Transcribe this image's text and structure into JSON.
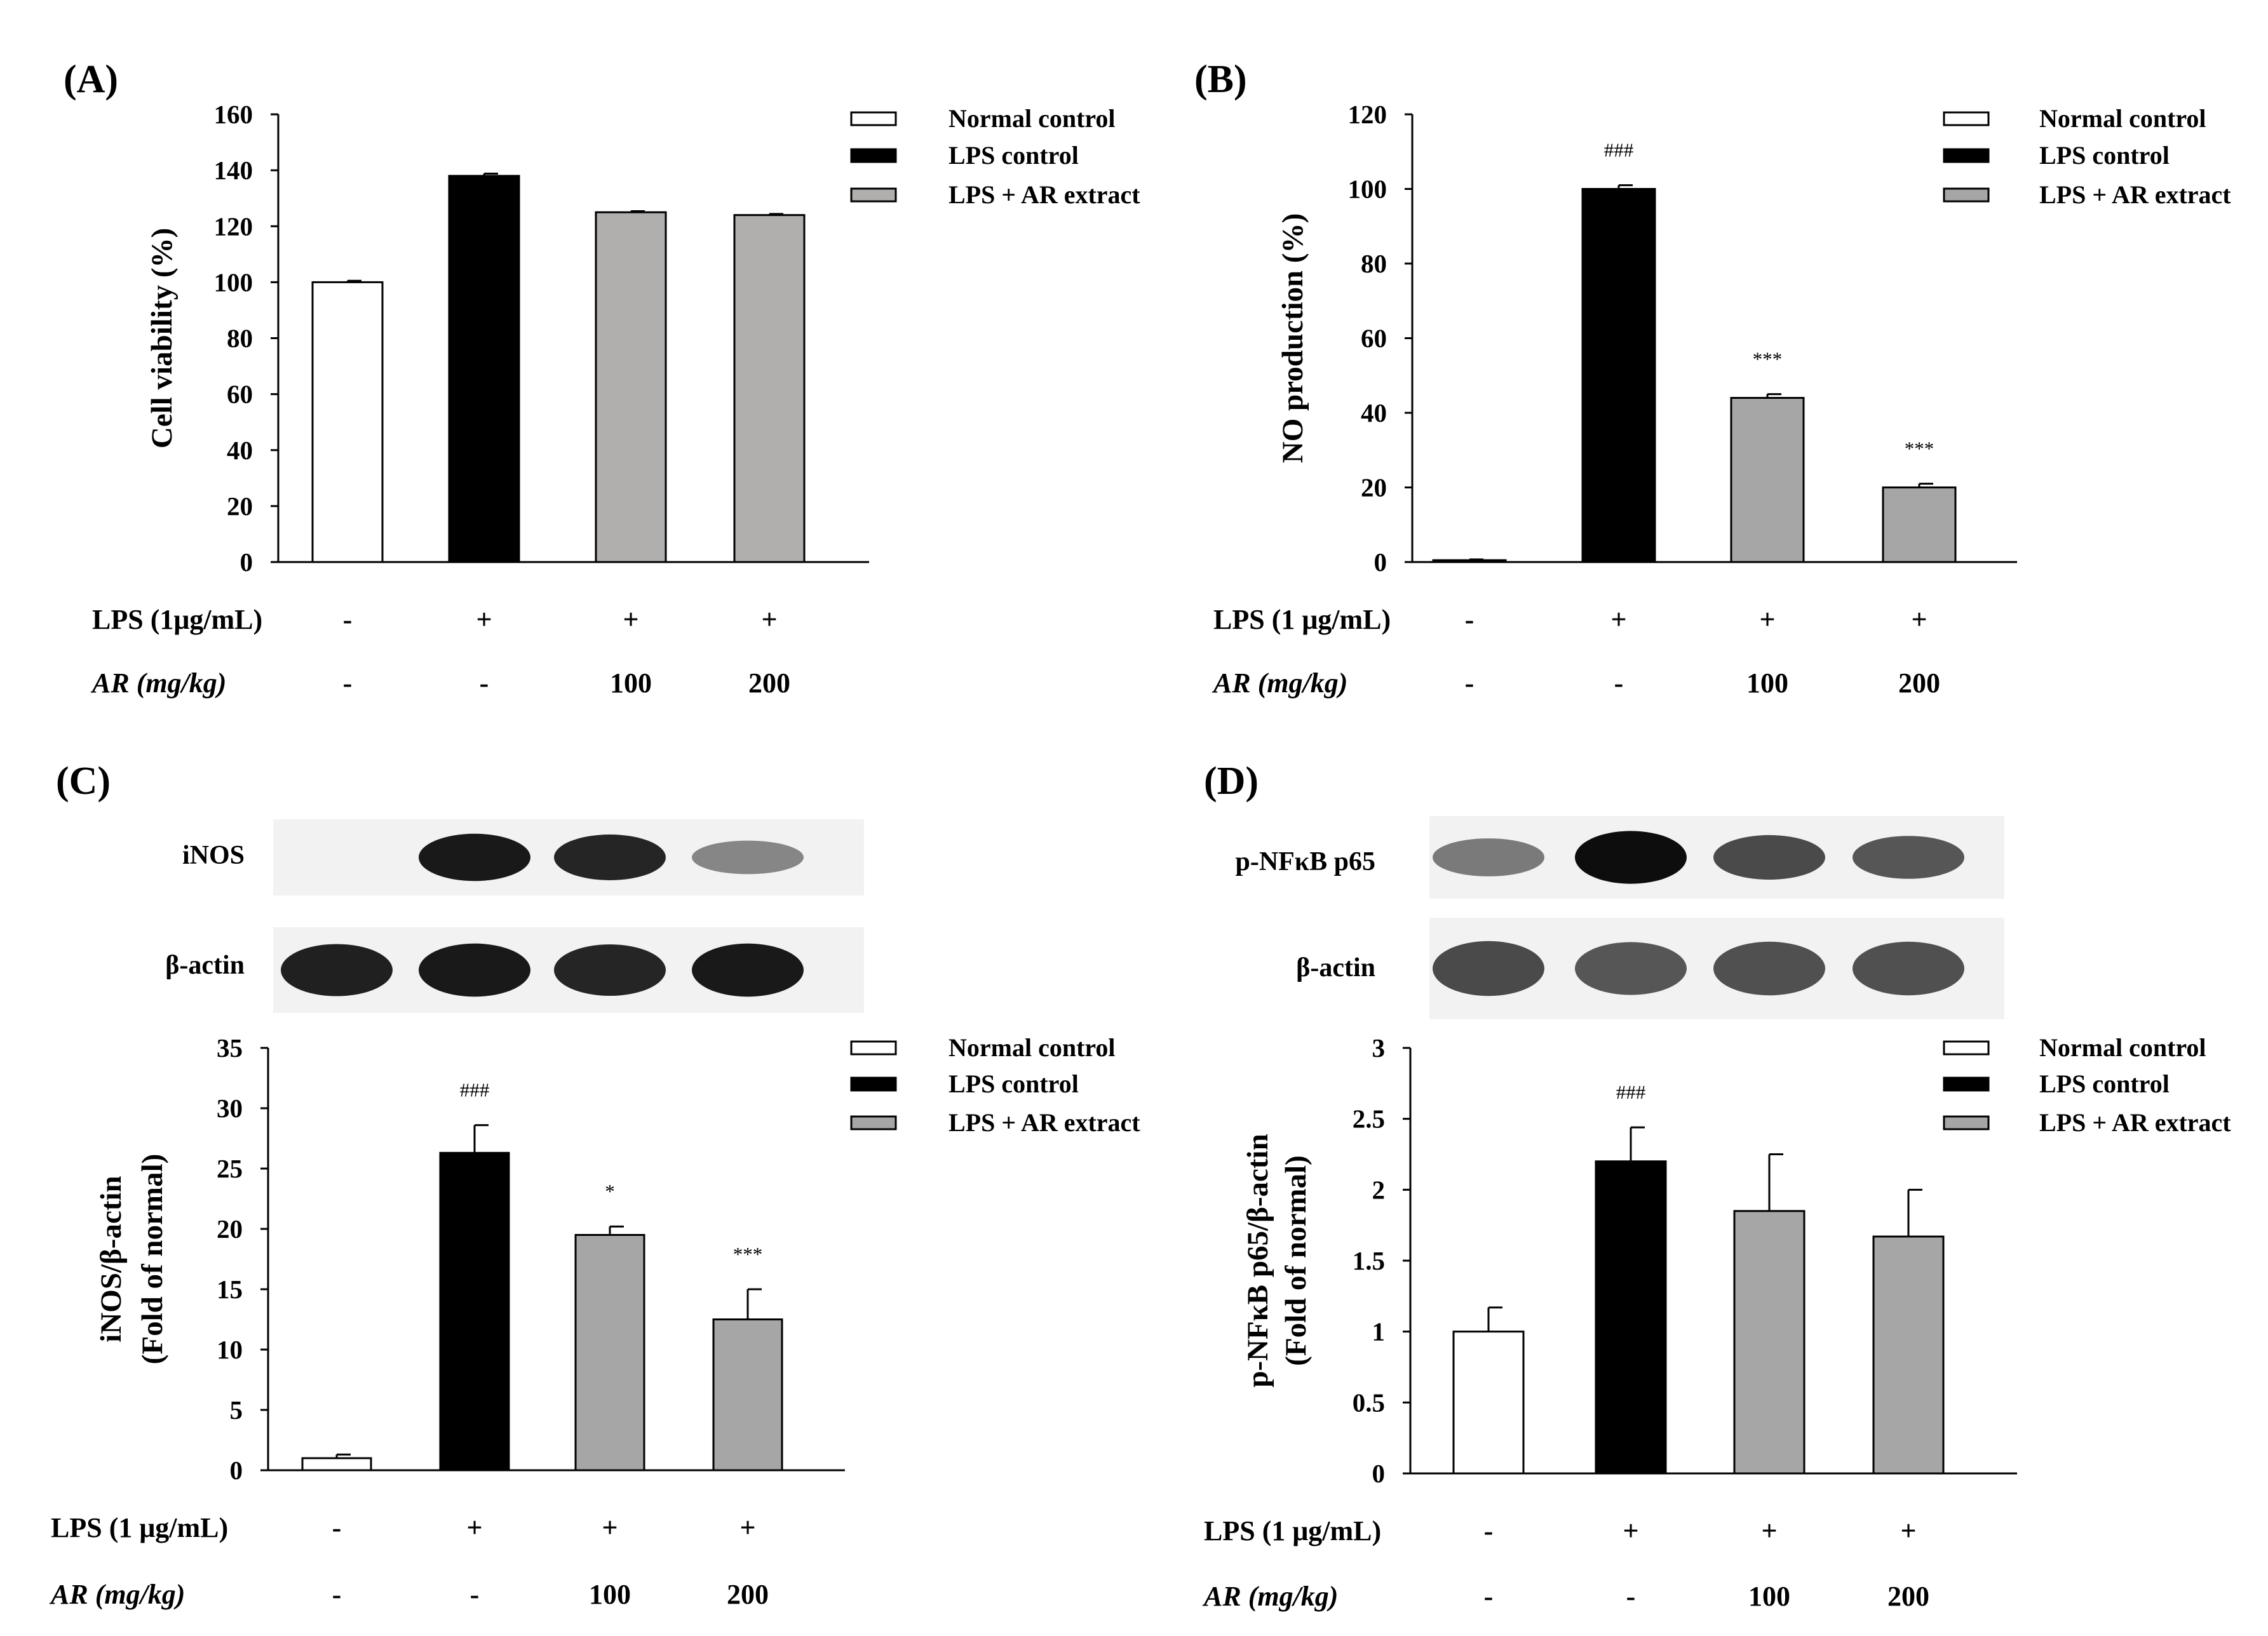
{
  "colors": {
    "normal": "#ffffff",
    "lps": "#000000",
    "ar_a": "#b1aeae",
    "ar": "#a6a6a6",
    "edge": "#000000"
  },
  "legend": [
    "Normal control",
    "LPS control",
    "LPS + AR extract"
  ],
  "chart_data": [
    {
      "panel": "(A)",
      "type": "bar",
      "ylabel": "Cell viability (%)",
      "ylim": [
        0,
        160
      ],
      "yticks": [
        "0",
        "20",
        "40",
        "60",
        "80",
        "100",
        "120",
        "140",
        "160"
      ],
      "categories": [
        "Normal control",
        "LPS control",
        "LPS + AR 100",
        "LPS + AR 200"
      ],
      "values": [
        100,
        138,
        125,
        124
      ],
      "errors": [
        0.5,
        0.8,
        0.4,
        0.4
      ],
      "significance": [
        "",
        "",
        "",
        ""
      ],
      "rows": [
        {
          "label": "LPS (1μg/mL)",
          "italic_prefix": "",
          "values": [
            "-",
            "+",
            "+",
            "+"
          ]
        },
        {
          "label": " (mg/kg)",
          "italic_prefix": "AR",
          "values": [
            "-",
            "-",
            "100",
            "200"
          ]
        }
      ]
    },
    {
      "panel": "(B)",
      "type": "bar",
      "ylabel": "NO production (%)",
      "ylim": [
        0,
        120
      ],
      "yticks": [
        "0",
        "20",
        "40",
        "60",
        "80",
        "100",
        "120"
      ],
      "categories": [
        "Normal control",
        "LPS control",
        "LPS + AR 100",
        "LPS + AR 200"
      ],
      "values": [
        0.5,
        100,
        44,
        20
      ],
      "errors": [
        0.2,
        1.0,
        1.0,
        1.0
      ],
      "significance": [
        "",
        "###",
        "***",
        "***"
      ],
      "rows": [
        {
          "label": "LPS (1 μg/mL)",
          "italic_prefix": "",
          "values": [
            "-",
            "+",
            "+",
            "+"
          ]
        },
        {
          "label": " (mg/kg)",
          "italic_prefix": "AR",
          "values": [
            "-",
            "-",
            "100",
            "200"
          ]
        }
      ]
    },
    {
      "panel": "(C)",
      "type": "bar",
      "ylabel_lines": [
        "iNOS/β-actin",
        "(Fold of normal)"
      ],
      "ylim": [
        0,
        35
      ],
      "yticks": [
        "0",
        "5",
        "10",
        "15",
        "20",
        "25",
        "30",
        "35"
      ],
      "categories": [
        "Normal control",
        "LPS control",
        "LPS + AR 100",
        "LPS + AR 200"
      ],
      "values": [
        1,
        26.3,
        19.5,
        12.5
      ],
      "errors": [
        0.3,
        2.3,
        0.7,
        2.5
      ],
      "significance": [
        "",
        "###",
        "*",
        "***"
      ],
      "blot_labels": [
        "iNOS",
        "β-actin"
      ],
      "rows": [
        {
          "label": "LPS (1 μg/mL)",
          "italic_prefix": "",
          "values": [
            "-",
            "+",
            "+",
            "+"
          ]
        },
        {
          "label": " (mg/kg)",
          "italic_prefix": "AR",
          "values": [
            "-",
            "-",
            "100",
            "200"
          ]
        }
      ]
    },
    {
      "panel": "(D)",
      "type": "bar",
      "ylabel_lines": [
        "p-NFκB p65/β-actin",
        "(Fold of normal)"
      ],
      "ylim": [
        0,
        3
      ],
      "yticks": [
        "0",
        "0.5",
        "1",
        "1.5",
        "2",
        "2.5",
        "3"
      ],
      "categories": [
        "Normal control",
        "LPS control",
        "LPS + AR 100",
        "LPS + AR 200"
      ],
      "values": [
        1,
        2.2,
        1.85,
        1.67
      ],
      "errors": [
        0.17,
        0.24,
        0.4,
        0.33
      ],
      "significance": [
        "",
        "###",
        "",
        ""
      ],
      "blot_labels": [
        "p-NFκB p65",
        "β-actin"
      ],
      "rows": [
        {
          "label": "LPS (1 μg/mL)",
          "italic_prefix": "",
          "values": [
            "-",
            "+",
            "+",
            "+"
          ]
        },
        {
          "label": " (mg/kg)",
          "italic_prefix": "AR",
          "values": [
            "-",
            "-",
            "100",
            "200"
          ]
        }
      ]
    }
  ]
}
